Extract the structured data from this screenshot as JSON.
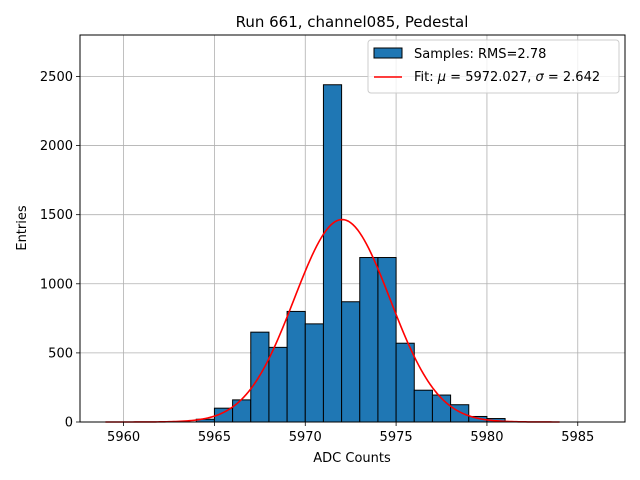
{
  "chart_data": {
    "type": "bar",
    "title": "Run 661, channel085, Pedestal",
    "xlabel": "ADC Counts",
    "ylabel": "Entries",
    "xlim": [
      5957.6,
      5987.6
    ],
    "ylim": [
      0,
      2800
    ],
    "xticks": [
      5960,
      5965,
      5970,
      5975,
      5980,
      5985
    ],
    "yticks": [
      0,
      500,
      1000,
      1500,
      2000,
      2500
    ],
    "grid": true,
    "legend_position": "top-right",
    "bar_color": "#1f77b4",
    "fit_color": "#ff0000",
    "histogram": {
      "name": "Samples: RMS=2.78",
      "bin_width": 1,
      "bin_left_edges": [
        5964,
        5965,
        5966,
        5967,
        5968,
        5969,
        5970,
        5971,
        5972,
        5973,
        5974,
        5975,
        5976,
        5977,
        5978,
        5979,
        5980,
        5981
      ],
      "values": [
        20,
        100,
        160,
        650,
        540,
        800,
        710,
        2440,
        870,
        1190,
        1190,
        570,
        230,
        195,
        125,
        40,
        25,
        3
      ]
    },
    "fit": {
      "legend_prefix": "Fit: ",
      "mu_symbol": "μ",
      "mu_text": " = 5972.027, ",
      "sigma_symbol": "σ",
      "sigma_text": " = 2.642",
      "mu": 5972.027,
      "sigma": 2.642,
      "amplitude": 1465,
      "x_range": [
        5959,
        5984
      ]
    }
  }
}
